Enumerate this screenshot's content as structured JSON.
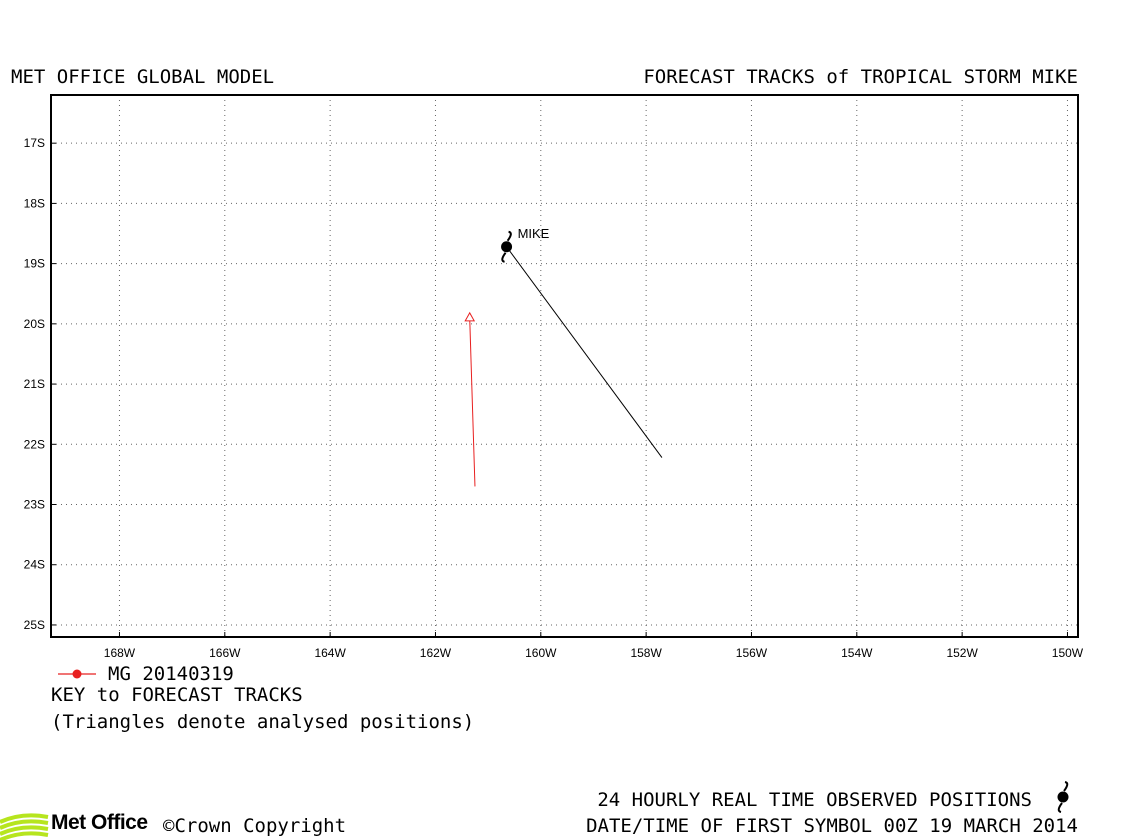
{
  "header": {
    "left_title": "MET OFFICE GLOBAL MODEL",
    "right_title": "FORECAST TRACKS of TROPICAL STORM MIKE"
  },
  "map": {
    "lon_range": [
      -169.3,
      -149.8
    ],
    "lat_range": [
      -25.2,
      -16.2
    ],
    "lon_ticks": [
      {
        "value": -168,
        "label": "168W"
      },
      {
        "value": -166,
        "label": "166W"
      },
      {
        "value": -164,
        "label": "164W"
      },
      {
        "value": -162,
        "label": "162W"
      },
      {
        "value": -160,
        "label": "160W"
      },
      {
        "value": -158,
        "label": "158W"
      },
      {
        "value": -156,
        "label": "156W"
      },
      {
        "value": -154,
        "label": "154W"
      },
      {
        "value": -152,
        "label": "152W"
      },
      {
        "value": -150,
        "label": "150W"
      }
    ],
    "lat_ticks": [
      {
        "value": -17,
        "label": "17S"
      },
      {
        "value": -18,
        "label": "18S"
      },
      {
        "value": -19,
        "label": "19S"
      },
      {
        "value": -20,
        "label": "20S"
      },
      {
        "value": -21,
        "label": "21S"
      },
      {
        "value": -22,
        "label": "22S"
      },
      {
        "value": -23,
        "label": "23S"
      },
      {
        "value": -24,
        "label": "24S"
      },
      {
        "value": -25,
        "label": "25S"
      }
    ],
    "grid": "dotted",
    "storm": {
      "label": "MIKE",
      "observed_position": {
        "lon": -160.65,
        "lat": -18.72
      }
    },
    "observed_track": {
      "color": "#000000",
      "points": [
        {
          "lon": -160.65,
          "lat": -18.72
        },
        {
          "lon": -157.7,
          "lat": -22.22
        }
      ]
    },
    "forecast_track": {
      "color": "#e82020",
      "points": [
        {
          "lon": -161.35,
          "lat": -19.9
        },
        {
          "lon": -161.25,
          "lat": -22.7
        }
      ]
    }
  },
  "legend": {
    "series_label": "MG 20140319",
    "series_color": "#e82020",
    "key_title": "KEY to FORECAST TRACKS",
    "note": "(Triangles denote analysed positions)"
  },
  "footer": {
    "logo_text": "Met Office",
    "copyright": "©Crown Copyright",
    "observed_note": "24 HOURLY REAL TIME OBSERVED POSITIONS",
    "first_symbol": "DATE/TIME OF FIRST SYMBOL 00Z 19 MARCH 2014"
  }
}
